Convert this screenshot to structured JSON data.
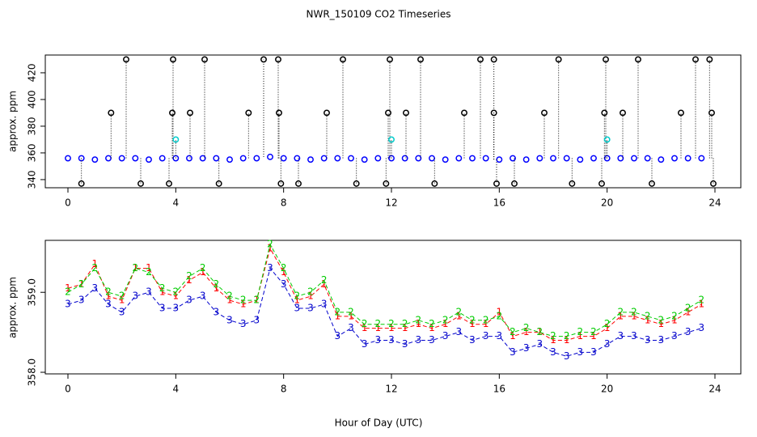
{
  "chart_data": [
    {
      "type": "scatter",
      "title": "NWR_150109  CO2 Timeseries",
      "ylabel": "approx. ppm",
      "xlim": [
        -0.84,
        24.96
      ],
      "ylim": [
        333.9,
        433.3
      ],
      "xticks": [
        0,
        4,
        8,
        12,
        16,
        20,
        24
      ],
      "yticks": [
        340,
        360,
        380,
        400,
        420
      ],
      "series": [
        {
          "color": "#0000ff",
          "x": [
            0,
            0.5,
            1,
            1.5,
            2,
            2.5,
            3,
            3.5,
            4,
            4.5,
            5,
            5.5,
            6,
            6.5,
            7,
            7.5,
            8,
            8.5,
            9,
            9.5,
            10,
            10.5,
            11,
            11.5,
            12,
            12.5,
            13,
            13.5,
            14,
            14.5,
            15,
            15.5,
            16,
            16.5,
            17,
            17.5,
            18,
            18.5,
            19,
            19.5,
            20,
            20.5,
            21,
            21.5,
            22,
            22.5,
            23,
            23.5
          ],
          "values": [
            356,
            356,
            355,
            356,
            356,
            356,
            355,
            356,
            356,
            356,
            356,
            356,
            355,
            356,
            356,
            357,
            356,
            356,
            355,
            356,
            356,
            356,
            355,
            356,
            356,
            356,
            356,
            356,
            355,
            356,
            356,
            356,
            355,
            356,
            355,
            356,
            356,
            356,
            355,
            356,
            356,
            356,
            356,
            356,
            355,
            356,
            356,
            356
          ]
        },
        {
          "color": "#000000",
          "x": [
            2.16,
            3.9,
            5.07,
            7.26,
            7.8,
            10.2,
            11.94,
            13.08,
            15.3,
            15.8,
            18.2,
            19.95,
            21.15,
            23.28,
            23.8,
            1.6,
            3.87,
            4.53,
            6.7,
            7.83,
            9.6,
            11.88,
            12.54,
            14.7,
            15.8,
            17.67,
            19.9,
            20.58,
            22.74,
            23.88,
            0.5,
            2.7,
            3.75,
            5.6,
            7.9,
            8.55,
            10.7,
            11.8,
            13.6,
            15.9,
            16.56,
            18.7,
            19.8,
            21.66,
            23.94
          ],
          "values": [
            430,
            430,
            430,
            430,
            430,
            430,
            430,
            430,
            430,
            430,
            430,
            430,
            430,
            430,
            430,
            390,
            390,
            390,
            390,
            390,
            390,
            390,
            390,
            390,
            390,
            390,
            390,
            390,
            390,
            390,
            337,
            337,
            337,
            337,
            337,
            337,
            337,
            337,
            337,
            337,
            337,
            337,
            337,
            337,
            337
          ]
        },
        {
          "color": "#00cccc",
          "x": [
            4,
            12,
            20
          ],
          "values": [
            370,
            370,
            370
          ]
        }
      ]
    },
    {
      "type": "text-marker",
      "ylabel": "approx. ppm",
      "xlabel": "Hour of Day (UTC)",
      "xlim": [
        -0.84,
        24.96
      ],
      "ylim": [
        357.98,
        359.65
      ],
      "xticks": [
        0,
        4,
        8,
        12,
        16,
        20,
        24
      ],
      "yticks": [
        {
          "value": 358,
          "label": "358.0"
        },
        {
          "value": 359,
          "label": "359.0"
        }
      ],
      "x": [
        0,
        0.5,
        1,
        1.5,
        2,
        2.5,
        3,
        3.5,
        4,
        4.5,
        5,
        5.5,
        6,
        6.5,
        7,
        7.5,
        8,
        8.5,
        9,
        9.5,
        10,
        10.5,
        11,
        11.5,
        12,
        12.5,
        13,
        13.5,
        14,
        14.5,
        15,
        15.5,
        16,
        16.5,
        17,
        17.5,
        18,
        18.5,
        19,
        19.5,
        20,
        20.5,
        21,
        21.5,
        22,
        22.5,
        23,
        23.5
      ],
      "series": [
        {
          "marker": "1",
          "color": "#ff0000",
          "values": [
            359.05,
            359.1,
            359.35,
            358.95,
            358.9,
            359.3,
            359.3,
            359.0,
            358.95,
            359.15,
            359.25,
            359.05,
            358.9,
            358.85,
            358.9,
            359.55,
            359.25,
            358.9,
            358.95,
            359.1,
            358.7,
            358.7,
            358.55,
            358.55,
            358.55,
            358.55,
            358.6,
            358.55,
            358.6,
            358.7,
            358.6,
            358.6,
            358.75,
            358.45,
            358.5,
            358.5,
            358.4,
            358.4,
            358.45,
            358.45,
            358.55,
            358.7,
            358.7,
            358.65,
            358.6,
            358.65,
            358.75,
            358.85
          ]
        },
        {
          "marker": "2",
          "color": "#00cc00",
          "values": [
            359.0,
            359.1,
            359.3,
            359.0,
            358.95,
            359.3,
            359.25,
            359.05,
            359.0,
            359.2,
            359.3,
            359.1,
            358.95,
            358.9,
            358.9,
            359.6,
            359.3,
            358.95,
            359.0,
            359.15,
            358.75,
            358.75,
            358.6,
            358.6,
            358.6,
            358.6,
            358.65,
            358.6,
            358.65,
            358.75,
            358.65,
            358.65,
            358.7,
            358.5,
            358.55,
            358.5,
            358.45,
            358.45,
            358.5,
            358.5,
            358.6,
            358.75,
            358.75,
            358.7,
            358.65,
            358.7,
            358.8,
            358.9
          ]
        },
        {
          "marker": "3",
          "color": "#0000cc",
          "values": [
            358.85,
            358.9,
            359.05,
            358.85,
            358.75,
            358.95,
            359.0,
            358.8,
            358.8,
            358.9,
            358.95,
            358.75,
            358.65,
            358.6,
            358.65,
            359.3,
            359.1,
            358.8,
            358.8,
            358.85,
            358.45,
            358.55,
            358.35,
            358.4,
            358.4,
            358.35,
            358.4,
            358.4,
            358.45,
            358.5,
            358.4,
            358.45,
            358.45,
            358.25,
            358.3,
            358.35,
            358.25,
            358.2,
            358.25,
            358.25,
            358.35,
            358.45,
            358.45,
            358.4,
            358.4,
            358.45,
            358.5,
            358.55
          ]
        }
      ]
    }
  ]
}
